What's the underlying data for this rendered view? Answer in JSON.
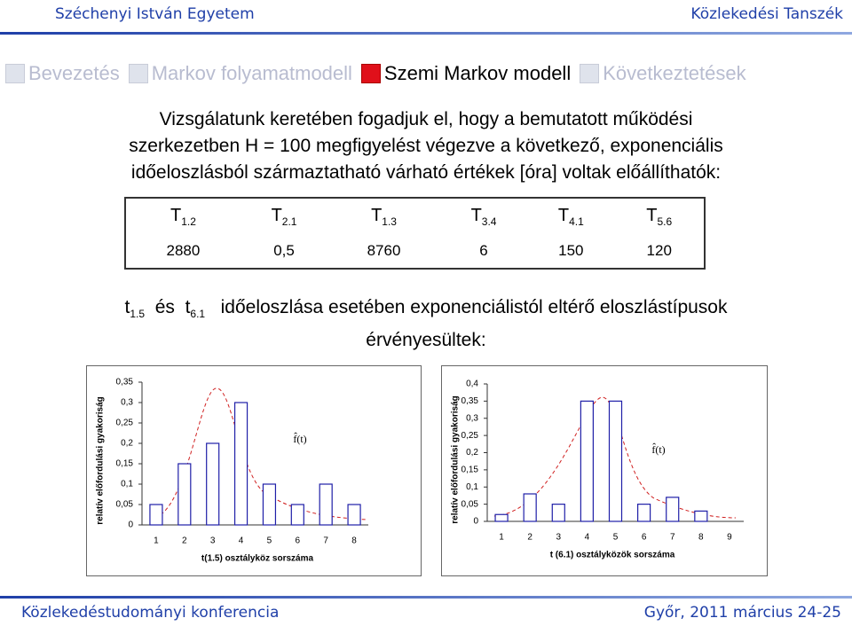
{
  "header": {
    "left": "Széchenyi István Egyetem",
    "right": "Közlekedési Tanszék"
  },
  "nav": [
    {
      "label": "Bevezetés",
      "active": false
    },
    {
      "label": "Markov folyamatmodell",
      "active": false
    },
    {
      "label": "Szemi Markov modell",
      "active": true
    },
    {
      "label": "Következtetések",
      "active": false
    }
  ],
  "intro": [
    "Vizsgálatunk keretében fogadjuk el, hogy a bemutatott működési",
    "szerkezetben H = 100 megfigyelést végezve a következő, exponenciális",
    "időeloszlásból származtatható várható értékek [óra] voltak előállíthatók:"
  ],
  "table": {
    "header": [
      {
        "main": "T",
        "sub": "1.2"
      },
      {
        "main": "T",
        "sub": "2.1"
      },
      {
        "main": "T",
        "sub": "1.3"
      },
      {
        "main": "T",
        "sub": "3.4"
      },
      {
        "main": "T",
        "sub": "4.1"
      },
      {
        "main": "T",
        "sub": "5.6"
      }
    ],
    "row": [
      "2880",
      "0,5",
      "8760",
      "6",
      "150",
      "120"
    ]
  },
  "note": {
    "t1": "t",
    "sub1": "1.5",
    "and": "és",
    "t2": "t",
    "sub2": "6.1",
    "rest": "időeloszlása esetében exponenciálistól eltérő eloszlástípusok",
    "line2": "érvényesültek:"
  },
  "chart_data": [
    {
      "type": "bar",
      "y_label": "relatív előfordulási gyakoriság",
      "x_label": "t(1.5) osztályköz sorszáma",
      "annotation": "f̂(t)",
      "categories": [
        "1",
        "2",
        "3",
        "4",
        "5",
        "6",
        "7",
        "8"
      ],
      "values": [
        0.05,
        0.15,
        0.2,
        0.3,
        0.1,
        0.05,
        0.1,
        0.05
      ],
      "color": "#1f1fa8",
      "ylim": [
        0,
        0.35
      ],
      "yticks": [
        0,
        {
          "value": 0.05,
          "label": "0,05"
        },
        {
          "value": 0.1,
          "label": "0,1"
        },
        {
          "value": 0.15,
          "label": "0,15"
        },
        {
          "value": 0.2,
          "label": "0,2"
        },
        {
          "value": 0.25,
          "label": "0,25"
        },
        {
          "value": 0.3,
          "label": "0,3"
        },
        {
          "value": 0.35,
          "label": "0,35"
        }
      ]
    },
    {
      "type": "bar",
      "y_label": "relatív előfordulási gyakoriság",
      "x_label": "t (6.1) osztályközök sorszáma",
      "annotation": "f̂(t)",
      "categories": [
        "1",
        "2",
        "3",
        "4",
        "5",
        "6",
        "7",
        "8",
        "9"
      ],
      "values": [
        0.02,
        0.08,
        0.05,
        0.35,
        0.35,
        0.05,
        0.07,
        0.03,
        null
      ],
      "color": "#1f1fa8",
      "ylim": [
        0,
        0.4
      ],
      "yticks": [
        0,
        {
          "value": 0.05,
          "label": "0,05"
        },
        {
          "value": 0.1,
          "label": "0,1"
        },
        {
          "value": 0.15,
          "label": "0,15"
        },
        {
          "value": 0.2,
          "label": "0,2"
        },
        {
          "value": 0.25,
          "label": "0,25"
        },
        {
          "value": 0.3,
          "label": "0,3"
        },
        {
          "value": 0.35,
          "label": "0,35"
        },
        {
          "value": 0.4,
          "label": "0,4"
        }
      ]
    }
  ],
  "footer": {
    "left": "Közlekedéstudományi konferencia",
    "right": "Győr, 2011 március 24-25"
  }
}
